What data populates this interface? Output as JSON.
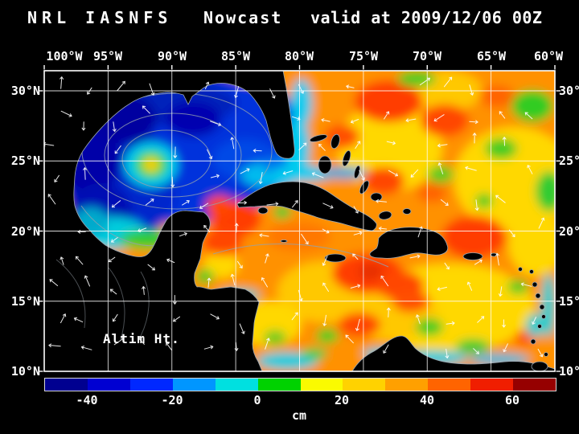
{
  "title": {
    "model": "NRL IASNFS",
    "product": "Nowcast",
    "valid": "valid at 2009/12/06 00Z"
  },
  "map": {
    "field_label": "Altim Ht.",
    "lon_ticks": [
      "100°W",
      "95°W",
      "90°W",
      "85°W",
      "80°W",
      "75°W",
      "70°W",
      "65°W",
      "60°W"
    ],
    "lat_ticks": [
      "30°N",
      "25°N",
      "20°N",
      "15°N",
      "10°N"
    ]
  },
  "colorbar": {
    "units": "cm",
    "tick_labels": [
      "-40",
      "-20",
      "0",
      "20",
      "40",
      "60"
    ],
    "segment_colors": [
      "#000090",
      "#0000D2",
      "#0028FF",
      "#0096FF",
      "#00E0E0",
      "#00D200",
      "#FAFA00",
      "#FFD200",
      "#FFA000",
      "#FF6400",
      "#F01E00",
      "#960000"
    ]
  },
  "chart_data": {
    "type": "heatmap",
    "title": "NRL IASNFS Nowcast valid at 2009/12/06 00Z",
    "field": "Altim Ht.",
    "units": "cm",
    "x_ticks": [
      "100°W",
      "95°W",
      "90°W",
      "85°W",
      "80°W",
      "75°W",
      "70°W",
      "65°W",
      "60°W"
    ],
    "y_ticks": [
      "30°N",
      "25°N",
      "20°N",
      "15°N",
      "10°N"
    ],
    "colorbar_ticks": [
      -40,
      -20,
      0,
      20,
      40,
      60
    ],
    "colorbar_range_cm": [
      -50,
      70
    ],
    "legend_position": "bottom",
    "grid": true,
    "regions_approx": [
      {
        "region": "Gulf of Mexico interior",
        "value_cm": -30
      },
      {
        "region": "Warm eddy central Gulf near 25N 91W",
        "value_cm": 20
      },
      {
        "region": "Bay of Campeche coastal band",
        "value_cm": 0
      },
      {
        "region": "Loop Current / Florida Strait band",
        "value_cm": -5
      },
      {
        "region": "Northwest Caribbean / Yucatan Channel",
        "value_cm": 45
      },
      {
        "region": "Caribbean south of Hispaniola",
        "value_cm": 45
      },
      {
        "region": "Atlantic east of Bahamas",
        "value_cm": 30
      },
      {
        "region": "Eastern Caribbean",
        "value_cm": 20
      },
      {
        "region": "Venezuela / Panama coastal strip",
        "value_cm": -5
      }
    ]
  }
}
